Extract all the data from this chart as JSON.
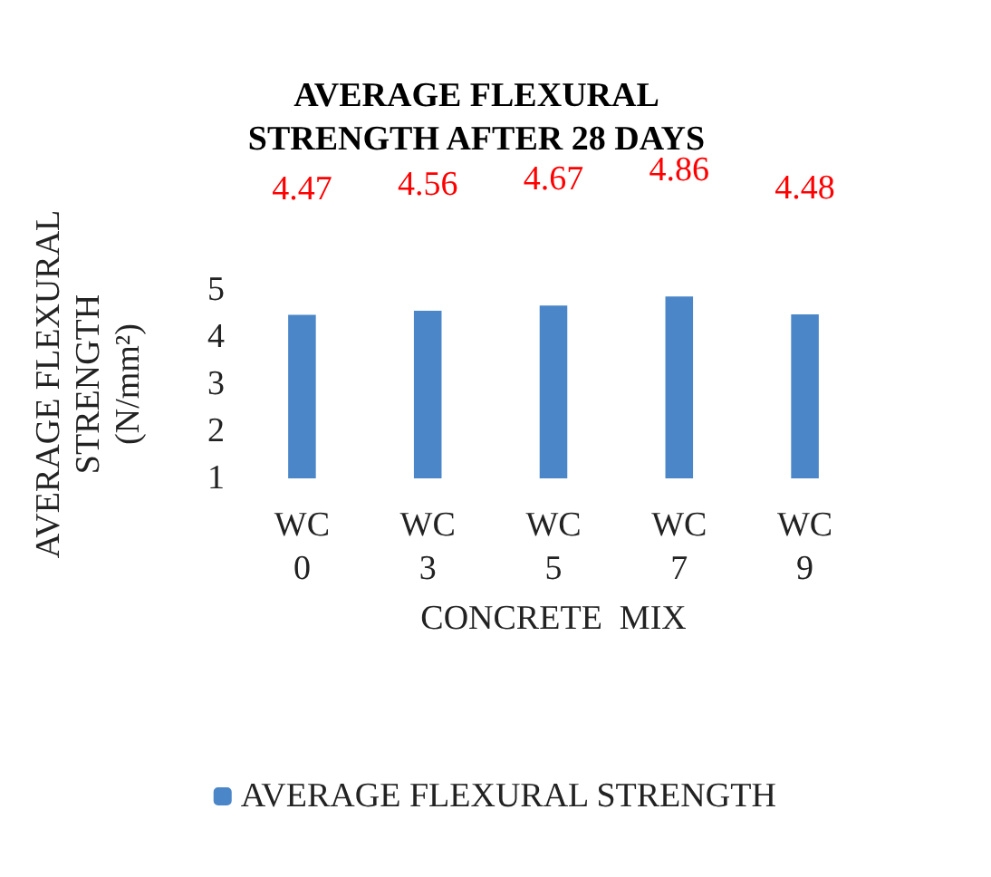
{
  "chart_data": {
    "type": "bar",
    "title": "AVERAGE FLEXURAL\nSTRENGTH AFTER 28 DAYS",
    "xlabel": "CONCRETE  MIX",
    "ylabel": "AVERAGE FLEXURAL\nSTRENGTH\n(N/mm²)",
    "categories": [
      "WC\n0",
      "WC\n3",
      "WC\n5",
      "WC\n7",
      "WC\n9"
    ],
    "series": [
      {
        "name": "AVERAGE FLEXURAL STRENGTH",
        "color": "#4a86c8",
        "values": [
          4.47,
          4.56,
          4.67,
          4.86,
          4.48
        ]
      }
    ],
    "ylim": [
      1,
      5
    ],
    "yticks": [
      1,
      2,
      3,
      4,
      5
    ],
    "data_labels": true,
    "grid": false,
    "legend": "bottom"
  }
}
